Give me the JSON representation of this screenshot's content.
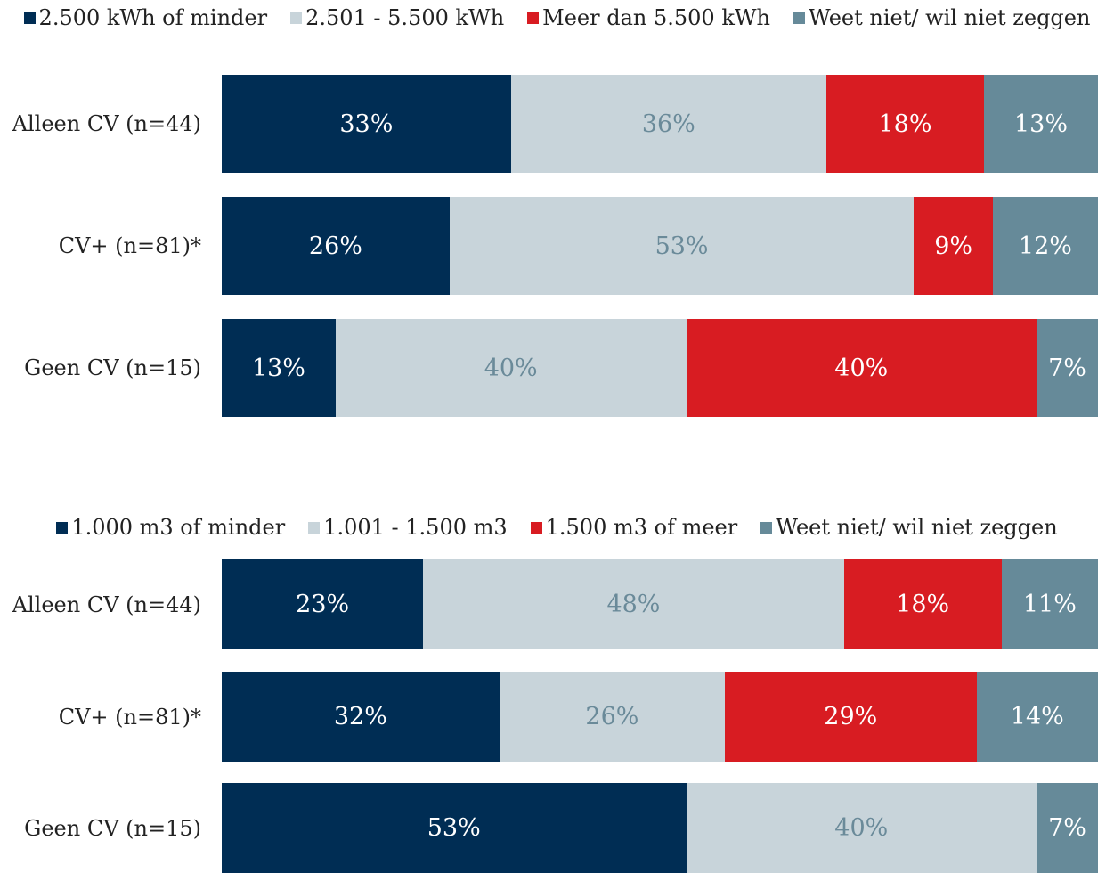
{
  "chart_data": [
    {
      "type": "bar",
      "orientation": "horizontal",
      "stacked": true,
      "title": "",
      "xlabel": "",
      "ylabel": "",
      "xlim": [
        0,
        100
      ],
      "legend": "top",
      "categories": [
        "Alleen CV (n=44)",
        "CV+ (n=81)*",
        "Geen CV (n=15)"
      ],
      "series": [
        {
          "name": "2.500 kWh of minder",
          "color": "#002d54",
          "label_color": "#ffffff",
          "values": [
            33,
            26,
            13
          ],
          "labels": [
            "33%",
            "26%",
            "13%"
          ]
        },
        {
          "name": "2.501 - 5.500 kWh",
          "color": "#c8d4da",
          "label_color": "#6a8a99",
          "values": [
            36,
            53,
            40
          ],
          "labels": [
            "36%",
            "53%",
            "40%"
          ]
        },
        {
          "name": "Meer dan 5.500 kWh",
          "color": "#d81c22",
          "label_color": "#ffffff",
          "values": [
            18,
            9,
            40
          ],
          "labels": [
            "18%",
            "9%",
            "40%"
          ]
        },
        {
          "name": "Weet niet/ wil niet zeggen",
          "color": "#668a99",
          "label_color": "#ffffff",
          "values": [
            13,
            12,
            7
          ],
          "labels": [
            "13%",
            "12%",
            "7%"
          ]
        }
      ]
    },
    {
      "type": "bar",
      "orientation": "horizontal",
      "stacked": true,
      "title": "",
      "xlabel": "",
      "ylabel": "",
      "xlim": [
        0,
        100
      ],
      "legend": "top",
      "categories": [
        "Alleen CV (n=44)",
        "CV+ (n=81)*",
        "Geen CV (n=15)"
      ],
      "series": [
        {
          "name": "1.000 m3 of minder",
          "color": "#002d54",
          "label_color": "#ffffff",
          "values": [
            23,
            32,
            53
          ],
          "labels": [
            "23%",
            "32%",
            "53%"
          ]
        },
        {
          "name": "1.001 - 1.500 m3",
          "color": "#c8d4da",
          "label_color": "#6a8a99",
          "values": [
            48,
            26,
            40
          ],
          "labels": [
            "48%",
            "26%",
            "40%"
          ]
        },
        {
          "name": "1.500 m3 of meer",
          "color": "#d81c22",
          "label_color": "#ffffff",
          "values": [
            18,
            29,
            0
          ],
          "labels": [
            "18%",
            "29%",
            ""
          ]
        },
        {
          "name": "Weet niet/ wil niet zeggen",
          "color": "#668a99",
          "label_color": "#ffffff",
          "values": [
            11,
            14,
            7
          ],
          "labels": [
            "11%",
            "14%",
            "7%"
          ]
        }
      ]
    }
  ]
}
